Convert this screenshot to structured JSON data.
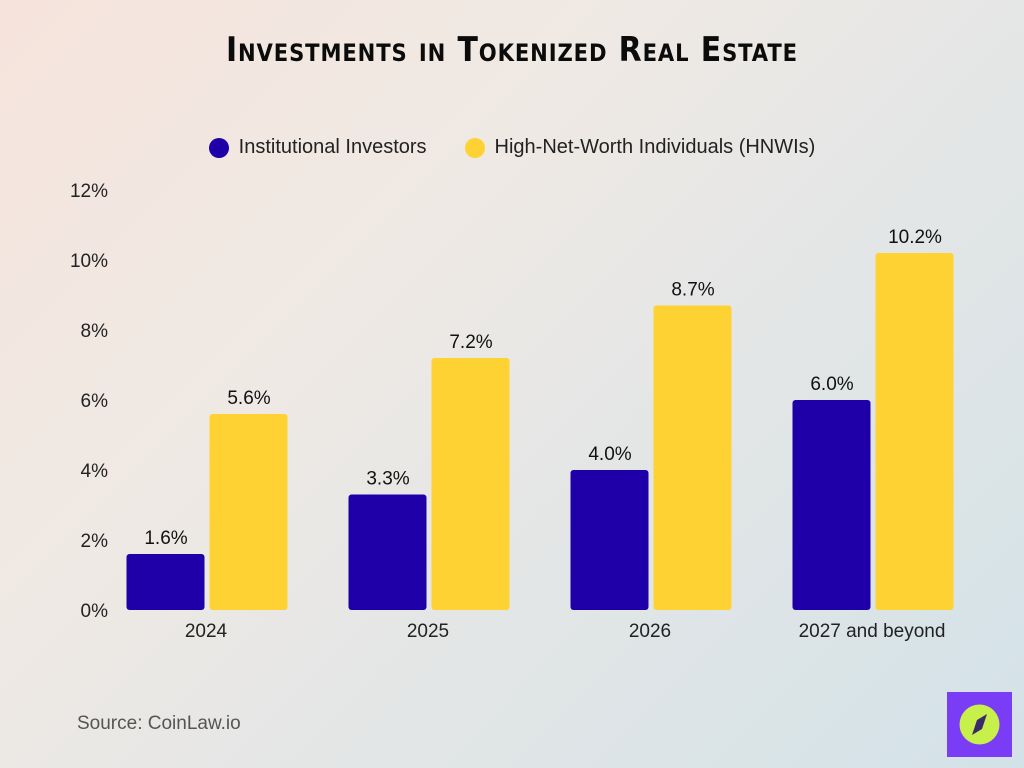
{
  "chart_data": {
    "type": "bar",
    "title": "Investments in Tokenized Real Estate",
    "categories": [
      "2024",
      "2025",
      "2026",
      "2027 and beyond"
    ],
    "series": [
      {
        "name": "Institutional Investors",
        "color": "#1f00a8",
        "values": [
          1.6,
          3.3,
          4.0,
          6.0
        ],
        "labels": [
          "1.6%",
          "3.3%",
          "4.0%",
          "6.0%"
        ]
      },
      {
        "name": "High-Net-Worth Individuals (HNWIs)",
        "color": "#ffd233",
        "values": [
          5.6,
          7.2,
          8.7,
          10.2
        ],
        "labels": [
          "5.6%",
          "7.2%",
          "8.7%",
          "10.2%"
        ]
      }
    ],
    "ylim": [
      0,
      12
    ],
    "yticks": [
      "0%",
      "2%",
      "4%",
      "6%",
      "8%",
      "10%",
      "12%"
    ],
    "grid": false,
    "legend": "top-center"
  },
  "source": "Source: CoinLaw.io",
  "logo": {
    "icon": "compass-icon",
    "colors": [
      "#7a3cf5",
      "#c8f04a"
    ]
  }
}
